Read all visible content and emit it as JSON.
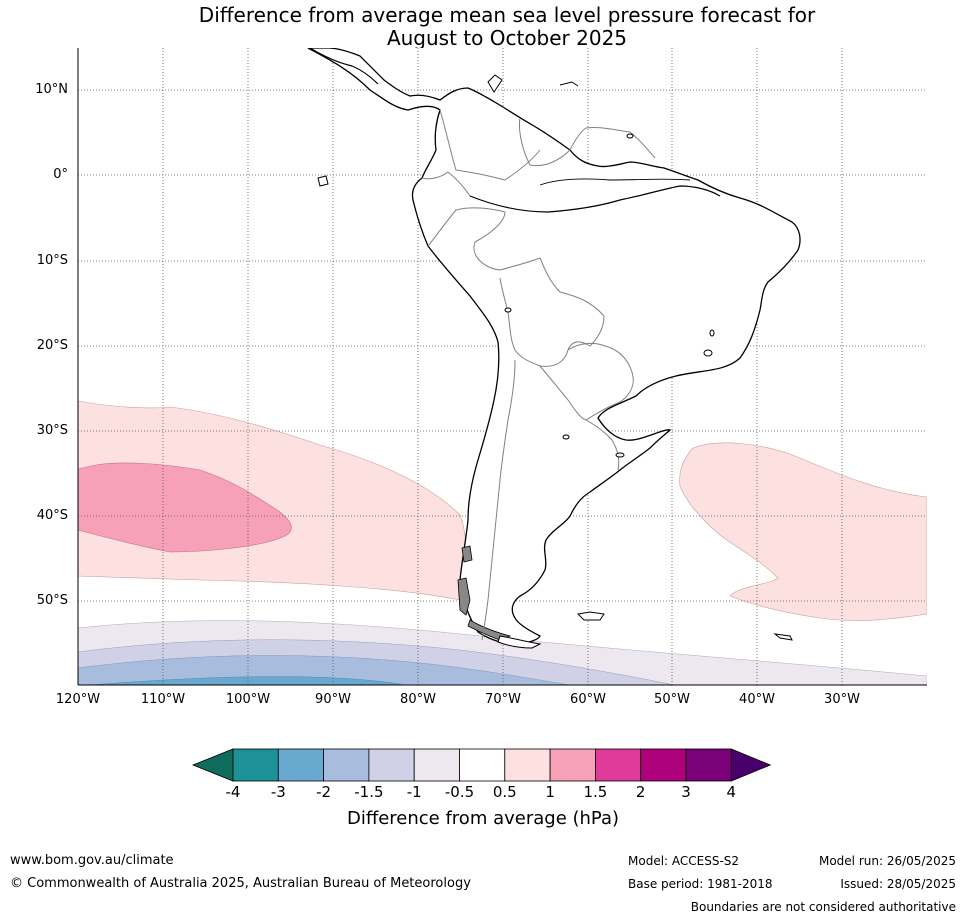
{
  "title": {
    "line1": "Difference from average mean sea level pressure forecast for",
    "line2": "August to October 2025"
  },
  "map": {
    "lat_labels": [
      "10°N",
      "0°",
      "10°S",
      "20°S",
      "30°S",
      "40°S",
      "50°S"
    ],
    "lon_labels": [
      "120°W",
      "110°W",
      "100°W",
      "90°W",
      "80°W",
      "70°W",
      "60°W",
      "50°W",
      "40°W",
      "30°W"
    ],
    "lat_range": [
      -60,
      15
    ],
    "lon_range": [
      -120,
      -20
    ],
    "grid": true,
    "anomaly_regions": [
      {
        "name": "Southeast Pacific high anomaly",
        "level": "0.5 to 1"
      },
      {
        "name": "Southeast Pacific high anomaly core",
        "level": "1 to 1.5"
      },
      {
        "name": "South Atlantic high anomaly",
        "level": "0.5 to 1"
      },
      {
        "name": "Southern Ocean low anomaly",
        "level": "-0.5 to -3"
      }
    ]
  },
  "colorbar": {
    "label": "Difference from average (hPa)",
    "ticks": [
      "-4",
      "-3",
      "-2",
      "-1.5",
      "-1",
      "-0.5",
      "0.5",
      "1",
      "1.5",
      "2",
      "3",
      "4"
    ],
    "colors": [
      "#1d9198",
      "#69a9d0",
      "#a8bddd",
      "#d0d1e6",
      "#ede8ef",
      "#ffffff",
      "#fde0e0",
      "#f7a1b8",
      "#e03b9b",
      "#b0017d",
      "#7a0177"
    ],
    "low_extend_color": "#0f6b5c",
    "high_extend_color": "#49006a"
  },
  "footer": {
    "website": "www.bom.gov.au/climate",
    "copyright": "© Commonwealth of Australia 2025, Australian Bureau of Meteorology",
    "model": "Model: ACCESS-S2",
    "base_period": "Base period: 1981-2018",
    "model_run": "Model run: 26/05/2025",
    "issued": "Issued: 28/05/2025",
    "disclaimer": "Boundaries are not considered authoritative"
  }
}
